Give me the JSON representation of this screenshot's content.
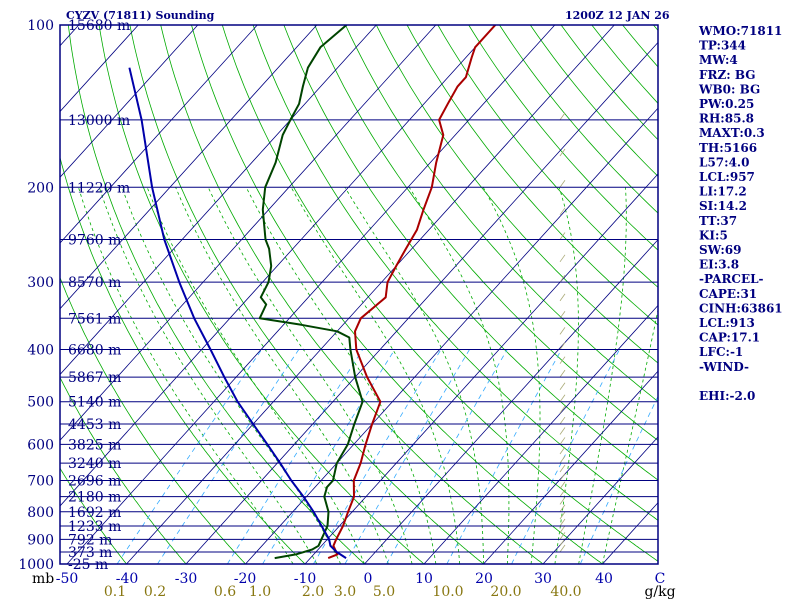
{
  "title_left": "CYZV (71811) Sounding",
  "title_right": "1200Z 12 JAN 26",
  "colors": {
    "background": "#ffffff",
    "frame": "#000080",
    "isobar": "#000080",
    "isotherm": "#000080",
    "dry_adiabat": "#00aa00",
    "moist_adiabat": "#00aa00",
    "mixing_ratio": "#33aaff",
    "temperature": "#aa0000",
    "dewpoint": "#004400",
    "parcel": "#0000aa",
    "wind_barbs": "#aaaa77",
    "temp_label": "#0000aa",
    "mix_label": "#887711",
    "unit_label": "#000000",
    "info_text": "#000080"
  },
  "chart_data": {
    "type": "skew-t",
    "pressure_unit": "mb",
    "temperature_unit": "C",
    "mixing_ratio_unit": "g/kg",
    "pressure_range": [
      1000,
      100
    ],
    "pressure_labels": [
      "100",
      "200",
      "300",
      "400",
      "500",
      "600",
      "700",
      "800",
      "900",
      "1000"
    ],
    "temperature_ticks": [
      "-50",
      "-40",
      "-30",
      "-20",
      "-10",
      "0",
      "10",
      "20",
      "30",
      "40",
      "C"
    ],
    "mixing_ratio_labels": [
      "0.1",
      "0.2",
      "0.6",
      "1.0",
      "2.0",
      "3.0",
      "5.0",
      "10.0",
      "20.0",
      "40.0",
      "g/kg"
    ],
    "height_labels": [
      {
        "p": 100,
        "label": "15680 m"
      },
      {
        "p": 150,
        "label": "13000 m"
      },
      {
        "p": 200,
        "label": "11220 m"
      },
      {
        "p": 250,
        "label": "9760 m"
      },
      {
        "p": 300,
        "label": "8570 m"
      },
      {
        "p": 350,
        "label": "7561 m"
      },
      {
        "p": 400,
        "label": "6680 m"
      },
      {
        "p": 450,
        "label": "5867 m"
      },
      {
        "p": 500,
        "label": "5140 m"
      },
      {
        "p": 550,
        "label": "4453 m"
      },
      {
        "p": 600,
        "label": "3825 m"
      },
      {
        "p": 650,
        "label": "3240 m"
      },
      {
        "p": 700,
        "label": "2696 m"
      },
      {
        "p": 750,
        "label": "2180 m"
      },
      {
        "p": 800,
        "label": "1692 m"
      },
      {
        "p": 850,
        "label": "1233 m"
      },
      {
        "p": 900,
        "label": "792 m"
      },
      {
        "p": 950,
        "label": "373 m"
      },
      {
        "p": 1000,
        "label": "-25 m"
      }
    ],
    "series": [
      {
        "name": "Temperature",
        "points": [
          [
            975,
            -7
          ],
          [
            960,
            -6
          ],
          [
            925,
            -8
          ],
          [
            900,
            -8.5
          ],
          [
            850,
            -9.4
          ],
          [
            800,
            -10.7
          ],
          [
            750,
            -12
          ],
          [
            700,
            -14.5
          ],
          [
            650,
            -16
          ],
          [
            600,
            -18
          ],
          [
            550,
            -20
          ],
          [
            500,
            -22
          ],
          [
            450,
            -28
          ],
          [
            400,
            -34
          ],
          [
            370,
            -37
          ],
          [
            350,
            -38
          ],
          [
            320,
            -37
          ],
          [
            300,
            -39
          ],
          [
            280,
            -40
          ],
          [
            260,
            -41
          ],
          [
            240,
            -42
          ],
          [
            220,
            -44
          ],
          [
            200,
            -46
          ],
          [
            180,
            -49
          ],
          [
            160,
            -52
          ],
          [
            150,
            -55
          ],
          [
            140,
            -56
          ],
          [
            130,
            -57
          ],
          [
            125,
            -57
          ],
          [
            115,
            -59
          ],
          [
            110,
            -60
          ],
          [
            100,
            -60
          ]
        ]
      },
      {
        "name": "Dewpoint",
        "points": [
          [
            975,
            -16
          ],
          [
            960,
            -13
          ],
          [
            940,
            -11
          ],
          [
            925,
            -10.5
          ],
          [
            900,
            -11
          ],
          [
            850,
            -12
          ],
          [
            800,
            -14
          ],
          [
            750,
            -17
          ],
          [
            720,
            -18
          ],
          [
            700,
            -18
          ],
          [
            650,
            -20
          ],
          [
            600,
            -21
          ],
          [
            550,
            -23
          ],
          [
            500,
            -25
          ],
          [
            450,
            -30
          ],
          [
            400,
            -35
          ],
          [
            380,
            -37
          ],
          [
            370,
            -40
          ],
          [
            360,
            -47
          ],
          [
            350,
            -55
          ],
          [
            330,
            -56
          ],
          [
            320,
            -58
          ],
          [
            300,
            -59
          ],
          [
            280,
            -61
          ],
          [
            260,
            -64
          ],
          [
            250,
            -66
          ],
          [
            220,
            -71
          ],
          [
            200,
            -74
          ],
          [
            180,
            -76
          ],
          [
            160,
            -79
          ],
          [
            150,
            -80
          ],
          [
            140,
            -81
          ],
          [
            130,
            -83
          ],
          [
            120,
            -85
          ],
          [
            110,
            -86
          ],
          [
            100,
            -85
          ]
        ]
      },
      {
        "name": "Parcel",
        "points": [
          [
            975,
            -4
          ],
          [
            950,
            -6.5
          ],
          [
            925,
            -8.5
          ],
          [
            900,
            -9.7
          ],
          [
            850,
            -13
          ],
          [
            800,
            -16.5
          ],
          [
            750,
            -20.5
          ],
          [
            700,
            -25
          ],
          [
            650,
            -29.5
          ],
          [
            600,
            -34.5
          ],
          [
            550,
            -40
          ],
          [
            500,
            -46
          ],
          [
            450,
            -52
          ],
          [
            400,
            -58.5
          ],
          [
            350,
            -66
          ],
          [
            300,
            -74
          ],
          [
            250,
            -83
          ],
          [
            200,
            -93
          ],
          [
            150,
            -105
          ],
          [
            120,
            -115
          ]
        ]
      }
    ]
  },
  "info": {
    "lines": [
      "WMO:71811",
      "TP:344",
      "MW:4",
      "FRZ: BG",
      "WB0: BG",
      "PW:0.25",
      "RH:85.8",
      "MAXT:0.3",
      "TH:5166",
      "L57:4.0",
      "LCL:957",
      "LI:17.2",
      "SI:14.2",
      "TT:37",
      "KI:5",
      "SW:69",
      "EI:3.8",
      "-PARCEL-",
      "CAPE:31",
      "CINH:63861",
      "LCL:913",
      "CAP:17.1",
      "LFC:-1",
      "-WIND-",
      "",
      "EHI:-2.0"
    ]
  }
}
